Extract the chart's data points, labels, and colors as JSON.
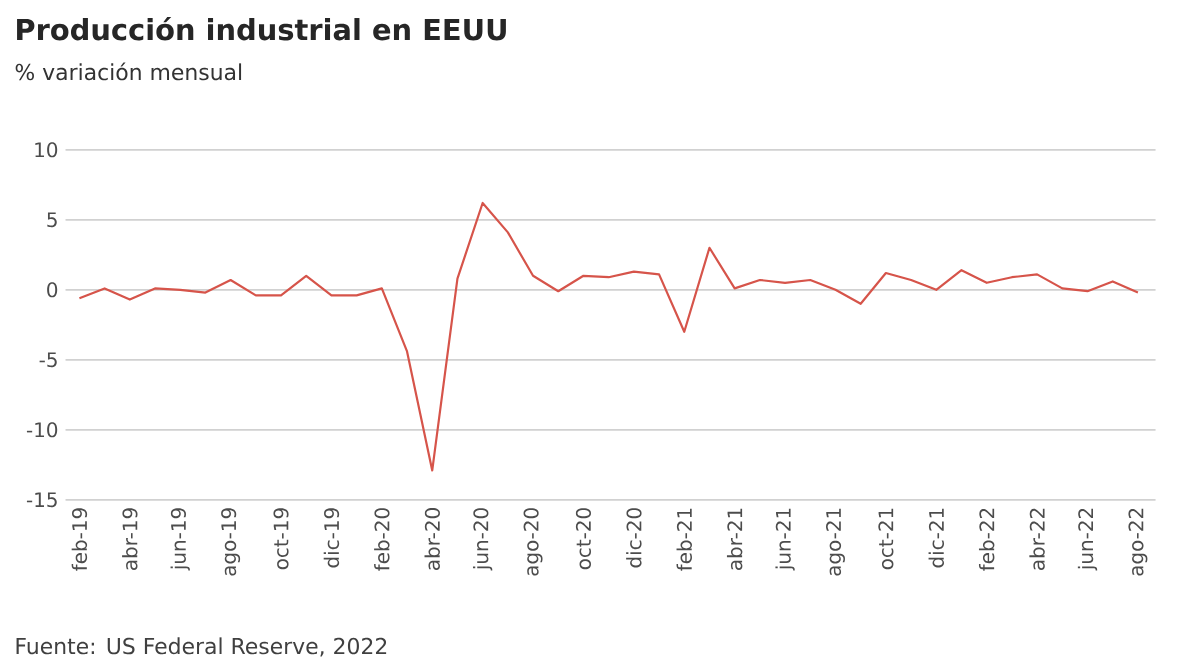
{
  "chart_data": {
    "type": "line",
    "title": "Producción industrial en EEUU",
    "subtitle": "% variación mensual",
    "categories": [
      "feb-19",
      null,
      "abr-19",
      null,
      "jun-19",
      null,
      "ago-19",
      null,
      "oct-19",
      null,
      "dic-19",
      null,
      "feb-20",
      null,
      "abr-20",
      null,
      "jun-20",
      null,
      "ago-20",
      null,
      "oct-20",
      null,
      "dic-20",
      null,
      "feb-21",
      null,
      "abr-21",
      null,
      "jun-21",
      null,
      "ago-21",
      null,
      "oct-21",
      null,
      "dic-21",
      null,
      "feb-22",
      null,
      "abr-22",
      null,
      "jun-22",
      null,
      "ago-22"
    ],
    "series": [
      {
        "color": "#d6544a",
        "values": [
          -0.6,
          0.1,
          -0.7,
          0.1,
          0.0,
          -0.2,
          0.7,
          -0.4,
          -0.4,
          1.0,
          -0.4,
          -0.4,
          0.1,
          -4.4,
          -12.9,
          0.8,
          6.2,
          4.1,
          1.0,
          -0.1,
          1.0,
          0.9,
          1.3,
          1.1,
          -3.0,
          3.0,
          0.1,
          0.7,
          0.5,
          0.7,
          0.0,
          -1.0,
          1.2,
          0.7,
          0.0,
          1.4,
          0.5,
          0.9,
          1.1,
          0.1,
          -0.1,
          0.6,
          -0.2
        ]
      }
    ],
    "ylim": [
      -15,
      10
    ],
    "yticks": [
      -15,
      -10,
      -5,
      0,
      5,
      10
    ],
    "grid": "y",
    "marker": "none",
    "line_style": "solid",
    "annotations": [
      "Fuente: US Federal Reserve, 2022"
    ]
  }
}
